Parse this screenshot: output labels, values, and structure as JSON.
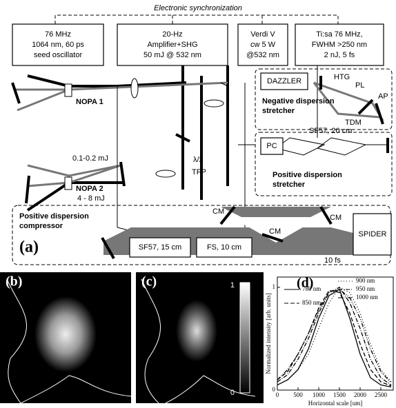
{
  "header": {
    "sync": "Electronic synchronization"
  },
  "boxes": [
    {
      "lines": [
        "76 MHz",
        "1064 nm, 60 ps",
        "seed oscillator"
      ]
    },
    {
      "lines": [
        "20-Hz",
        "Amplifier+SHG",
        "50 mJ @ 532 nm"
      ]
    },
    {
      "lines": [
        "Verdi V",
        "cw 5 W",
        "@532 nm"
      ]
    },
    {
      "lines": [
        "Ti:sa 76 MHz,",
        "FWHM >250 nm",
        "2 nJ, 5 fs"
      ]
    }
  ],
  "labels": {
    "dazzler": "DAZZLER",
    "htg": "HTG",
    "pl": "PL",
    "ap": "AP",
    "tdm": "TDM",
    "neg": [
      "Negative dispersion",
      "stretcher"
    ],
    "nopa1": "NOPA 1",
    "nopa2": "NOPA 2",
    "e1": "0.1-0.2 mJ",
    "e2": "4 - 8 mJ",
    "half": "λ/2",
    "tfp": "TFP",
    "pc": "PC",
    "sf57a": "SF57, 20 cm",
    "pos": [
      "Positive dispersion",
      "stretcher"
    ],
    "comp": [
      "Positive dispersion",
      "compressor"
    ],
    "sf57b": "SF57, 15 cm",
    "fs": "FS, 10 cm",
    "cm": [
      "CM",
      "CM",
      "CM"
    ],
    "spider": "SPIDER",
    "dur": "10 fs"
  },
  "panels": {
    "a": "(a)",
    "b": "(b)",
    "c": "(c)",
    "d": "(d)"
  },
  "colorbar": {
    "max": 1,
    "min": 0
  },
  "chart_data": {
    "type": "line",
    "xlabel": "Horizontal scale [um]",
    "ylabel": "Normalized intensity [arb. units]",
    "x": [
      0,
      250,
      500,
      750,
      1000,
      1250,
      1500,
      1750,
      2000,
      2250,
      2500,
      2750
    ],
    "xlim": [
      0,
      2800
    ],
    "ylim": [
      0,
      1.1
    ],
    "xticks": [
      0,
      500,
      1000,
      1500,
      2000,
      2500
    ],
    "yticks": [
      0,
      1
    ],
    "series": [
      {
        "name": "780 nm",
        "color": "#000000",
        "dash": "none",
        "values": [
          0.05,
          0.1,
          0.2,
          0.4,
          0.7,
          0.92,
          0.98,
          0.7,
          0.35,
          0.12,
          0.05,
          0.03
        ]
      },
      {
        "name": "850 nm",
        "color": "#000000",
        "dash": "6 3",
        "values": [
          0.1,
          0.18,
          0.35,
          0.55,
          0.8,
          0.97,
          0.95,
          0.75,
          0.45,
          0.2,
          0.08,
          0.04
        ]
      },
      {
        "name": "900 nm",
        "color": "#000000",
        "dash": "1 3",
        "values": [
          0.05,
          0.1,
          0.2,
          0.35,
          0.6,
          0.85,
          1.0,
          0.95,
          0.75,
          0.45,
          0.2,
          0.08
        ]
      },
      {
        "name": "950 nm",
        "color": "#000000",
        "dash": "6 2 1 2",
        "values": [
          0.08,
          0.15,
          0.3,
          0.5,
          0.75,
          0.95,
          1.0,
          0.85,
          0.6,
          0.3,
          0.12,
          0.05
        ]
      },
      {
        "name": "1000 nm",
        "color": "#000000",
        "dash": "6 2 1 2 1 2",
        "values": [
          0.1,
          0.2,
          0.35,
          0.55,
          0.78,
          0.95,
          0.98,
          0.9,
          0.7,
          0.4,
          0.18,
          0.07
        ]
      }
    ]
  }
}
